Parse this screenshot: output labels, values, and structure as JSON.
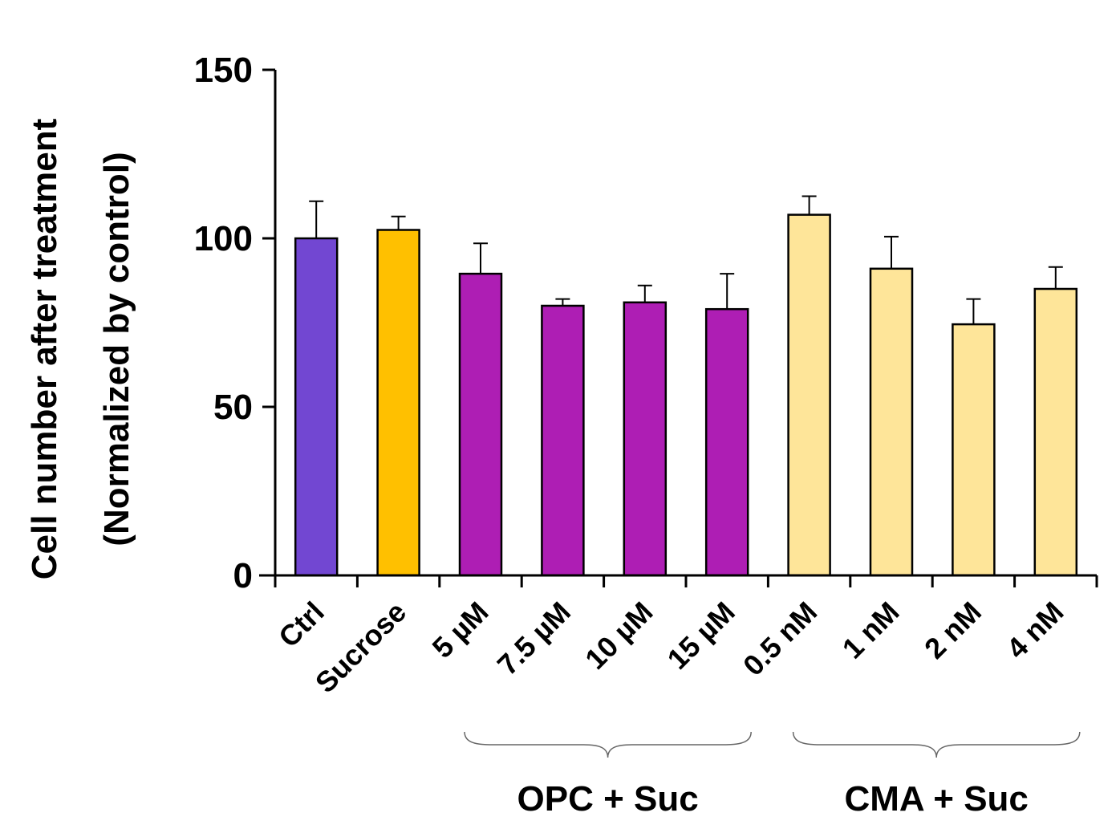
{
  "chart_data": {
    "type": "bar",
    "title": "",
    "ylabel_line1": "Cell number after treatment",
    "ylabel_line2": "(Normalized by control)",
    "xlabel": "",
    "ylim": [
      0,
      150
    ],
    "yticks": [
      0,
      50,
      100,
      150
    ],
    "yticks_text": [
      "0",
      "50",
      "100",
      "150"
    ],
    "grid": false,
    "categories": [
      "Ctrl",
      "Sucrose",
      "5 µM",
      "7.5 µM",
      "10 µM",
      "15 µM",
      "0.5 nM",
      "1 nM",
      "2 nM",
      "4 nM"
    ],
    "values": [
      100,
      102.5,
      89.5,
      80,
      81,
      79,
      107,
      91,
      74.5,
      85
    ],
    "errors": [
      11,
      4,
      9,
      2,
      5,
      10.5,
      5.5,
      9.5,
      7.5,
      6.5
    ],
    "bar_colors": [
      "#7247D2",
      "#FFC000",
      "#AE1EB4",
      "#AE1EB4",
      "#AE1EB4",
      "#AE1EB4",
      "#FEE599",
      "#FEE599",
      "#FEE599",
      "#FEE599"
    ],
    "groups": [
      {
        "label": "OPC + Suc",
        "from": 2,
        "to": 5
      },
      {
        "label": "CMA + Suc",
        "from": 6,
        "to": 9
      }
    ]
  }
}
